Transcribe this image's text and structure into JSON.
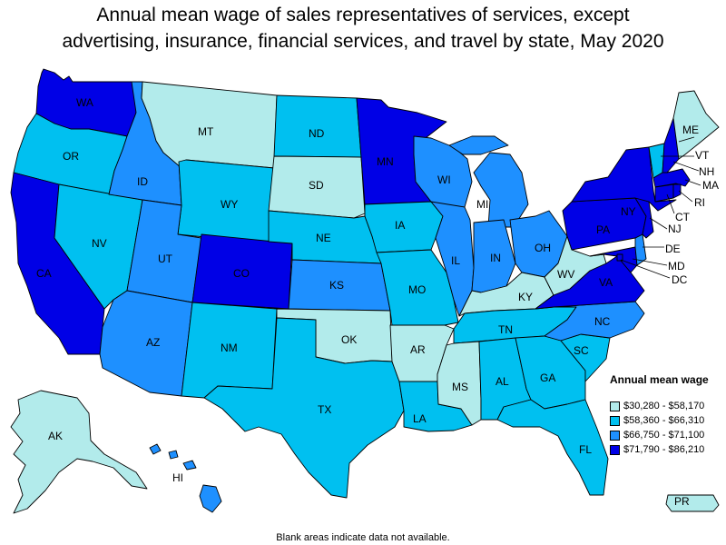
{
  "title_lines": [
    "Annual mean wage of sales representatives of services, except",
    "advertising, insurance, financial services, and travel by state, May 2020"
  ],
  "legend": {
    "title": "Annual mean wage",
    "items": [
      {
        "label": "$30,280 - $58,170",
        "color": "#b2ebeb"
      },
      {
        "label": "$58,360 - $66,310",
        "color": "#00c0f0"
      },
      {
        "label": "$66,750 - $71,100",
        "color": "#1e90ff"
      },
      {
        "label": "$71,790 - $86,210",
        "color": "#0000e6"
      }
    ]
  },
  "footnote": "Blank areas indicate data not available.",
  "states": {
    "WA": 3,
    "OR": 1,
    "CA": 3,
    "NV": 1,
    "ID": 2,
    "MT": 0,
    "WY": 1,
    "UT": 2,
    "AZ": 2,
    "CO": 3,
    "NM": 1,
    "ND": 1,
    "SD": 0,
    "NE": 1,
    "KS": 2,
    "OK": 0,
    "TX": 1,
    "MN": 3,
    "IA": 1,
    "MO": 1,
    "AR": 0,
    "LA": 1,
    "WI": 2,
    "IL": 2,
    "MS": 0,
    "MI": 2,
    "IN": 2,
    "KY": 0,
    "TN": 1,
    "AL": 1,
    "OH": 2,
    "GA": 1,
    "FL": 1,
    "SC": 1,
    "NC": 2,
    "VA": 3,
    "WV": 0,
    "PA": 3,
    "NY": 3,
    "VT": 1,
    "NH": 3,
    "ME": 0,
    "MA": 3,
    "CT": 3,
    "RI": 3,
    "NJ": 3,
    "DE": 2,
    "MD": 3,
    "DC": 3,
    "AK": 0,
    "HI": 2,
    "PR": 0
  }
}
